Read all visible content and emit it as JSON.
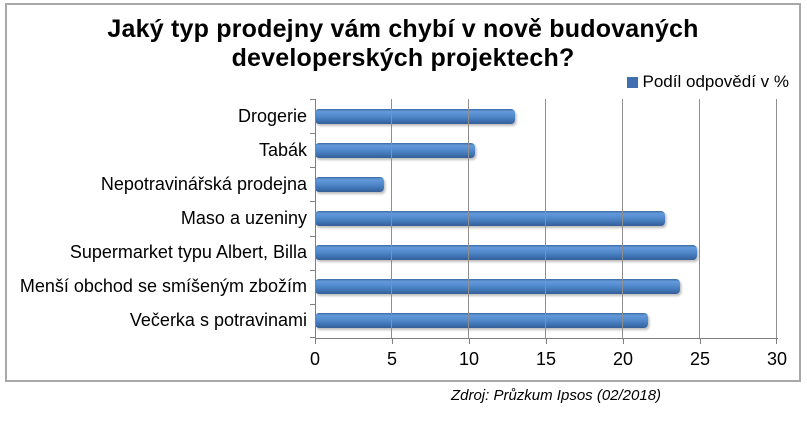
{
  "chart_data": {
    "type": "bar",
    "orientation": "horizontal",
    "title_lines": [
      "Jaký typ prodejny vám chybí v nově budovaných",
      "developerských projektech?"
    ],
    "title": "Jaký typ prodejny vám chybí v nově budovaných developerských projektech?",
    "legend_label": "Podíl odpovědí v %",
    "legend_position": "top-right",
    "categories": [
      "Drogerie",
      "Tabák",
      "Nepotravinářská prodejna",
      "Maso a uzeniny",
      "Supermarket typu Albert, Billa",
      "Menší obchod se smíšeným zbožím",
      "Večerka s potravinami"
    ],
    "values": [
      13.0,
      10.4,
      4.5,
      22.7,
      24.8,
      23.7,
      21.6
    ],
    "xlabel": "",
    "ylabel": "",
    "xlim": [
      0,
      30
    ],
    "xticks": [
      0,
      5,
      10,
      15,
      20,
      25,
      30
    ],
    "grid": "vertical-only"
  },
  "source_note": "Zdroj: Průzkum Ipsos (02/2018)",
  "colors": {
    "bar": "#4a82c4",
    "bar_highlight": "#5c93d6",
    "bar_shadow_edge": "#345e96",
    "legend_marker": "#3f6fad",
    "gridline": "#8e8e8e",
    "axis": "#7f7f7f",
    "chart_border": "#a8a8a8",
    "text": "#000000"
  }
}
